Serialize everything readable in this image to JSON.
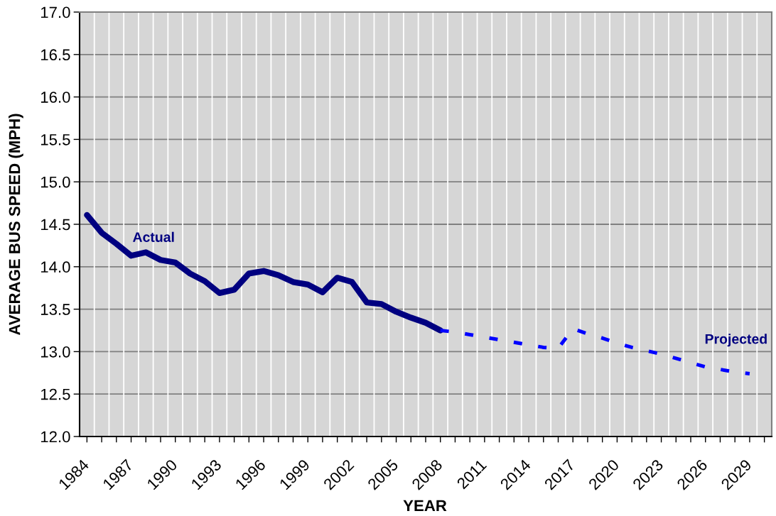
{
  "chart_data": {
    "type": "line",
    "xlabel": "YEAR",
    "ylabel": "AVERAGE BUS SPEED (MPH)",
    "categories": [
      "1984",
      null,
      null,
      "1987",
      null,
      null,
      "1990",
      null,
      null,
      "1993",
      null,
      null,
      "1996",
      null,
      null,
      "1999",
      null,
      null,
      "2002",
      null,
      null,
      "2005",
      null,
      null,
      "2008",
      null,
      null,
      "2011",
      null,
      null,
      "2014",
      null,
      null,
      "2017",
      null,
      null,
      "2020",
      null,
      null,
      "2023",
      null,
      null,
      "2026",
      null,
      null,
      "2029",
      null
    ],
    "series": [
      {
        "name": "Actual",
        "color": "#000080",
        "line_style": "solid",
        "values": [
          14.61,
          14.4,
          14.27,
          14.13,
          14.17,
          14.08,
          14.05,
          13.92,
          13.83,
          13.69,
          13.73,
          13.92,
          13.95,
          13.9,
          13.82,
          13.79,
          13.7,
          13.87,
          13.82,
          13.58,
          13.56,
          13.47,
          13.4,
          13.34,
          13.25,
          null,
          null,
          null,
          null,
          null,
          null,
          null,
          null,
          null,
          null,
          null,
          null,
          null,
          null,
          null,
          null,
          null,
          null,
          null,
          null,
          null,
          null
        ]
      },
      {
        "name": "Projected",
        "color": "#0000ff",
        "line_style": "dashed",
        "values": [
          null,
          null,
          null,
          null,
          null,
          null,
          null,
          null,
          null,
          null,
          null,
          null,
          null,
          null,
          null,
          null,
          null,
          null,
          null,
          null,
          null,
          null,
          null,
          null,
          13.25,
          13.23,
          13.2,
          13.17,
          13.14,
          13.11,
          13.08,
          13.05,
          13.04,
          13.27,
          13.21,
          13.16,
          13.1,
          13.05,
          13.01,
          12.97,
          12.92,
          12.87,
          12.82,
          12.79,
          12.76,
          12.74,
          null
        ]
      }
    ],
    "ylim": [
      12,
      17
    ],
    "yticks": [
      {
        "value": 12,
        "label": "12.0"
      },
      {
        "value": 12.5,
        "label": "12.5"
      },
      {
        "value": 13,
        "label": "13.0"
      },
      {
        "value": 13.5,
        "label": "13.5"
      },
      {
        "value": 14,
        "label": "14.0"
      },
      {
        "value": 14.5,
        "label": "14.5"
      },
      {
        "value": 15,
        "label": "15.0"
      },
      {
        "value": 15.5,
        "label": "15.5"
      },
      {
        "value": 16,
        "label": "16.0"
      },
      {
        "value": 16.5,
        "label": "16.5"
      },
      {
        "value": 17,
        "label": "17.0"
      }
    ],
    "grid": true,
    "legend": false,
    "marker": "none"
  }
}
